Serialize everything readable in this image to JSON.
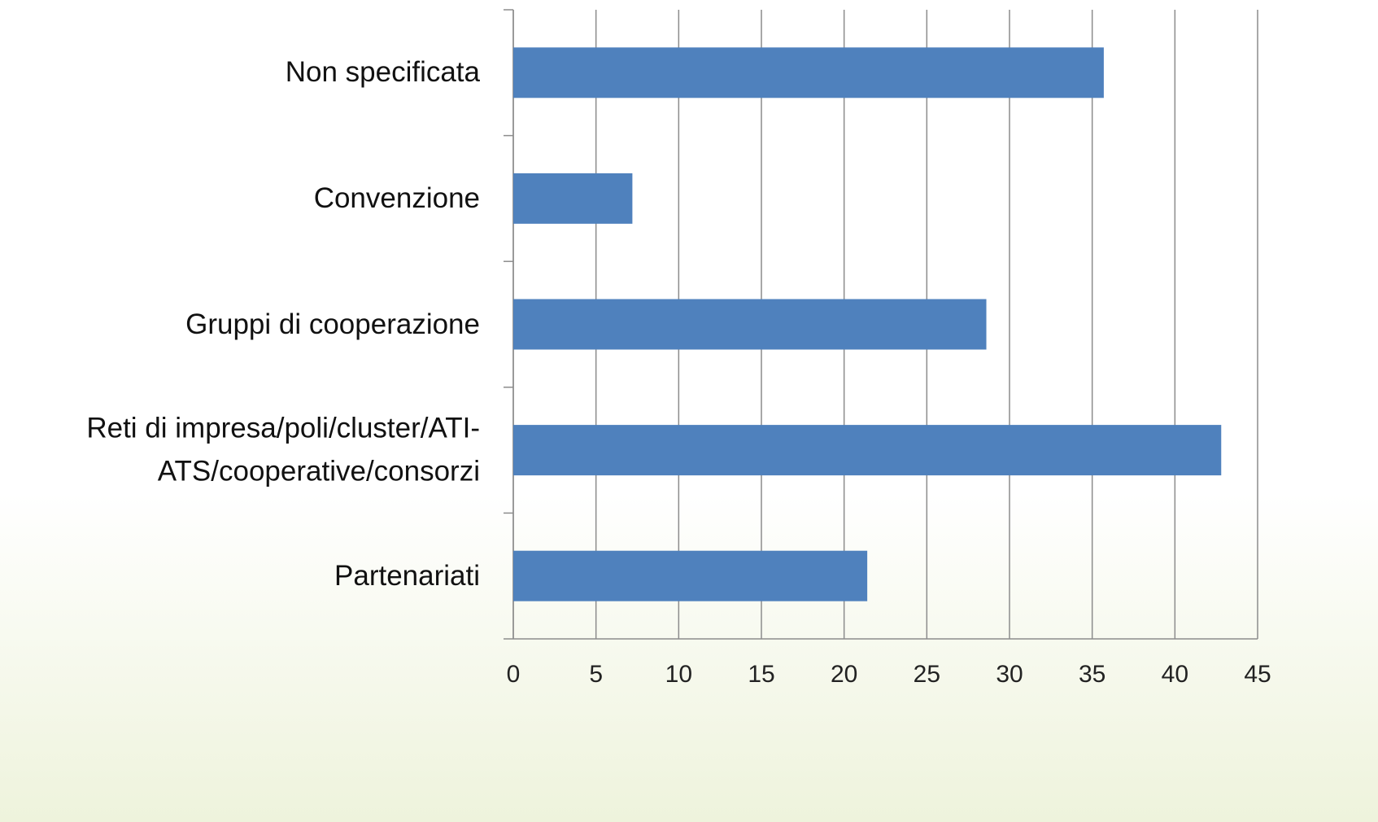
{
  "chart_data": {
    "type": "bar",
    "orientation": "horizontal",
    "categories": [
      "Non specificata",
      "Convenzione",
      "Gruppi di cooperazione",
      "Reti di impresa/poli/cluster/ATI-ATS/cooperative/consorzi",
      "Partenariati"
    ],
    "values": [
      35.7,
      7.2,
      28.6,
      42.8,
      21.4
    ],
    "color": "#4f81bd",
    "xlim": [
      0,
      45
    ],
    "xticks": [
      0,
      5,
      10,
      15,
      20,
      25,
      30,
      35,
      40,
      45
    ],
    "grid": true
  }
}
